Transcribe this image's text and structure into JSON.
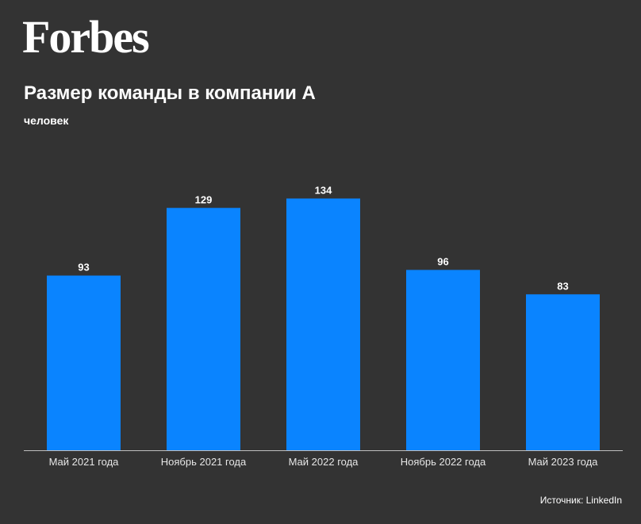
{
  "brand": "Forbes",
  "colors": {
    "background": "#333333",
    "bar": "#0a84ff",
    "axis": "#bfbfbf"
  },
  "chart_data": {
    "type": "bar",
    "title": "Размер команды в компании А",
    "subtitle": "человек",
    "xlabel": "",
    "ylabel": "",
    "categories": [
      "Май 2021 года",
      "Ноябрь 2021 года",
      "Май 2022 года",
      "Ноябрь 2022 года",
      "Май 2023 года"
    ],
    "values": [
      93,
      129,
      134,
      96,
      83
    ],
    "ylim": [
      0,
      150
    ],
    "grid": false,
    "legend": "none"
  },
  "source": "Источник: LinkedIn"
}
